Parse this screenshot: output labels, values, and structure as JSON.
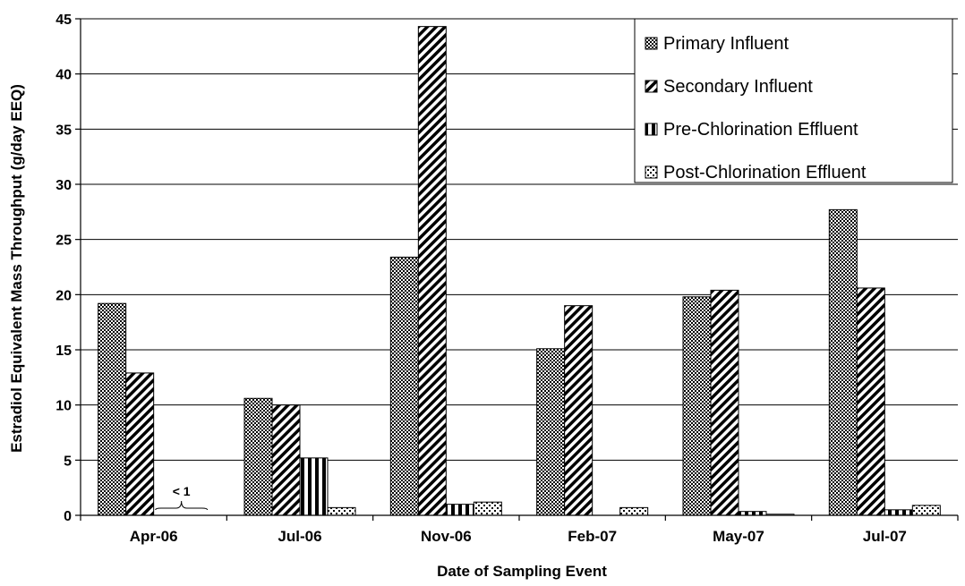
{
  "chart_data": {
    "type": "bar",
    "title": "",
    "xlabel": "Date of Sampling Event",
    "ylabel": "Estradiol Equivalent Mass Throughput (g/day EEQ)",
    "ylim": [
      0,
      45
    ],
    "yticks": [
      0,
      5,
      10,
      15,
      20,
      25,
      30,
      35,
      40,
      45
    ],
    "grid": true,
    "legend_position": "top-right",
    "categories": [
      "Apr-06",
      "Jul-06",
      "Nov-06",
      "Feb-07",
      "May-07",
      "Jul-07"
    ],
    "series": [
      {
        "name": "Primary Influent",
        "pattern": "crosshatch",
        "values": [
          19.2,
          10.6,
          23.4,
          15.1,
          19.8,
          27.7
        ]
      },
      {
        "name": "Secondary Influent",
        "pattern": "diagonal",
        "values": [
          12.9,
          10.0,
          44.3,
          19.0,
          20.4,
          20.6
        ]
      },
      {
        "name": "Pre-Chlorination Effluent",
        "pattern": "vertical",
        "values": [
          null,
          5.2,
          1.0,
          null,
          0.35,
          0.5
        ]
      },
      {
        "name": "Post-Chlorination Effluent",
        "pattern": "dotted",
        "values": [
          null,
          0.7,
          1.2,
          0.7,
          0.1,
          0.9
        ]
      }
    ],
    "annotations": [
      {
        "text": "< 1",
        "category": "Apr-06",
        "series_span": [
          2,
          3
        ],
        "style": "brace"
      }
    ]
  }
}
